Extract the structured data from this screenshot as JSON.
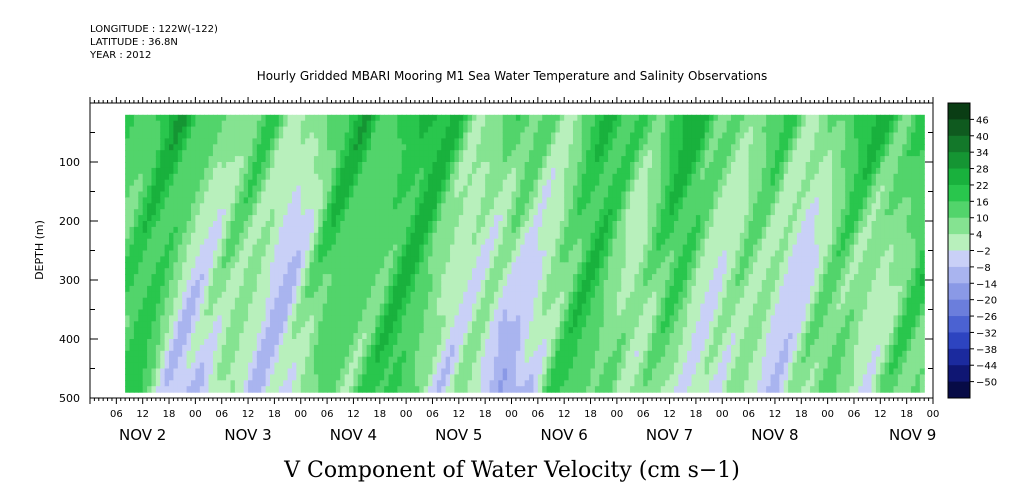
{
  "header": {
    "longitude": "LONGITUDE : 122W(-122)",
    "latitude": "LATITUDE : 36.8N",
    "year": "YEAR : 2012"
  },
  "chart_data": {
    "type": "heatmap",
    "title": "Hourly Gridded MBARI Mooring M1 Sea Water Temperature and Salinity Observations",
    "xlabel": "V Component of Water Velocity (cm s−1)",
    "ylabel": "DEPTH (m)",
    "ylim": [
      500,
      0
    ],
    "xlim_hours": [
      0,
      192
    ],
    "x_hour_ticks": [
      "06",
      "12",
      "18",
      "00",
      "06",
      "12",
      "18",
      "00",
      "06",
      "12",
      "18",
      "00",
      "06",
      "12",
      "18",
      "00",
      "06",
      "12",
      "18",
      "00",
      "06",
      "12",
      "18",
      "00",
      "06",
      "12",
      "18",
      "00",
      "06",
      "12",
      "18",
      "00"
    ],
    "x_day_labels": [
      "NOV  2",
      "NOV  3",
      "NOV  4",
      "NOV  5",
      "NOV  6",
      "NOV  7",
      "NOV  8",
      "NOV  9"
    ],
    "y_ticks": [
      100,
      200,
      300,
      400,
      500
    ],
    "colorbar": {
      "labels": [
        "46",
        "40",
        "34",
        "28",
        "22",
        "16",
        "10",
        "4",
        "−2",
        "−8",
        "−14",
        "−20",
        "−26",
        "−32",
        "−38",
        "−44",
        "−50"
      ],
      "colors": [
        "#0a3d14",
        "#0f5a1f",
        "#13782a",
        "#159533",
        "#19b13d",
        "#29c64d",
        "#52d46b",
        "#85e391",
        "#b8f0bc",
        "#c9d0f7",
        "#a9b4ef",
        "#8a99e6",
        "#6b7edc",
        "#4b62d2",
        "#2d44c0",
        "#1b2a9e",
        "#0f1673",
        "#070b46"
      ]
    },
    "data_extent": {
      "depth_min": 20,
      "depth_max": 490,
      "hour_start": 8,
      "hour_end": 190
    },
    "note": "Mostly values between -10 and +20 cm/s; positive (green) dominant near surface, negative (blue) bands at depth"
  }
}
